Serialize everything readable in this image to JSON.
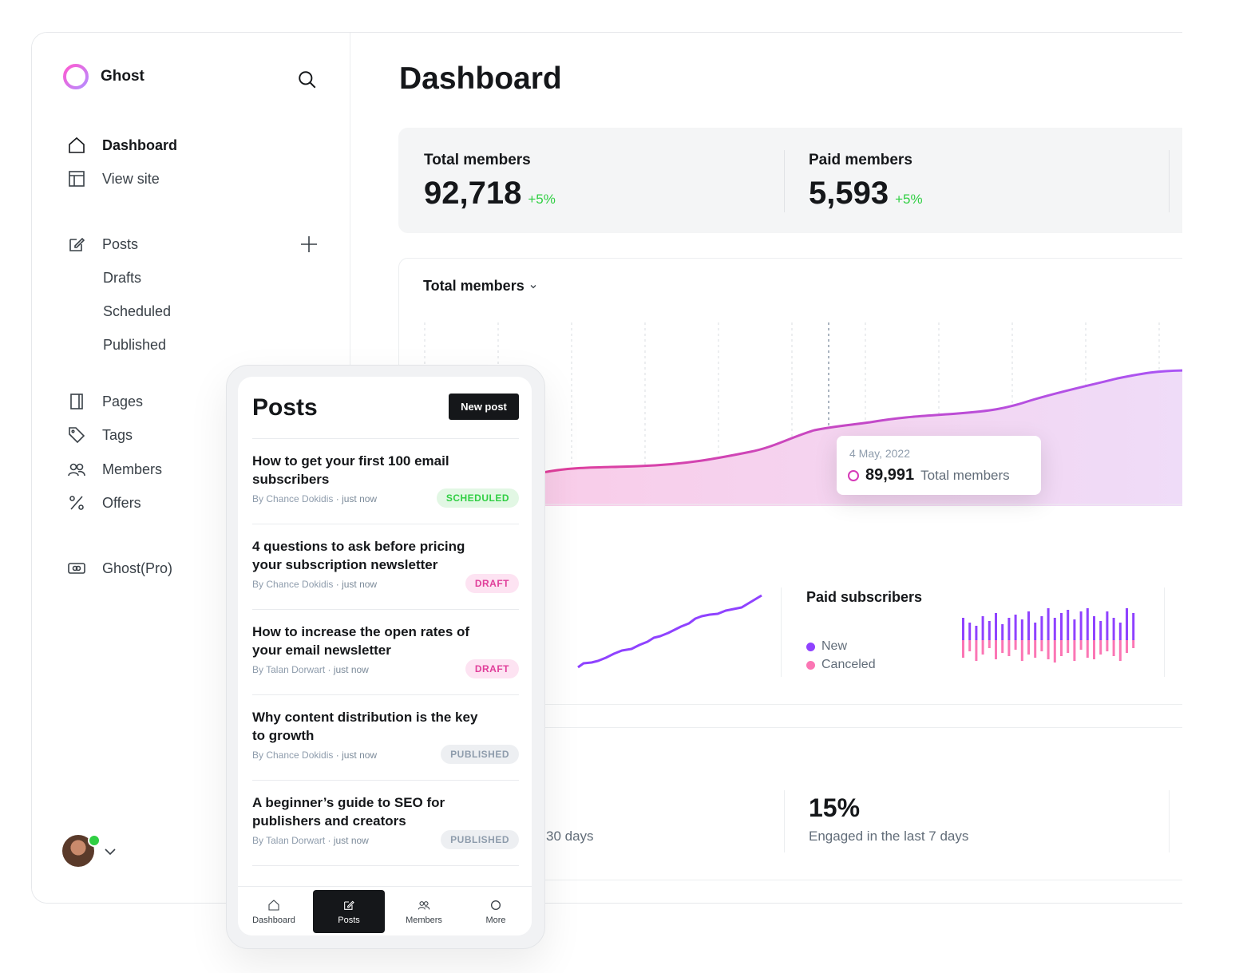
{
  "brand": {
    "name": "Ghost"
  },
  "sidebar": {
    "items": [
      {
        "label": "Dashboard"
      },
      {
        "label": "View site"
      },
      {
        "label": "Posts"
      },
      {
        "label": "Pages"
      },
      {
        "label": "Tags"
      },
      {
        "label": "Members"
      },
      {
        "label": "Offers"
      },
      {
        "label": "Ghost(Pro)"
      }
    ],
    "posts_sub": [
      {
        "label": "Drafts"
      },
      {
        "label": "Scheduled"
      },
      {
        "label": "Published"
      }
    ]
  },
  "main": {
    "title": "Dashboard",
    "stats": [
      {
        "label": "Total members",
        "value": "92,718",
        "delta": "+5%"
      },
      {
        "label": "Paid members",
        "value": "5,593",
        "delta": "+5%"
      }
    ],
    "chart": {
      "title": "Total members",
      "tooltip": {
        "date": "4 May, 2022",
        "value": "89,991",
        "label": "Total members"
      }
    },
    "paid_subscribers": {
      "title": "Paid subscribers",
      "legend": [
        {
          "label": "New",
          "color": "#8f42ff"
        },
        {
          "label": "Canceled",
          "color": "#fb76b4"
        }
      ]
    },
    "engagement": {
      "left_caption": "30 days",
      "value": "15%",
      "caption": "Engaged in the last 7 days"
    }
  },
  "phone": {
    "title": "Posts",
    "new_post_label": "New post",
    "posts": [
      {
        "title": "How to get your first 100 email subscribers",
        "author": "By Chance Dokidis",
        "time": "· just now",
        "status": "SCHEDULED",
        "status_class": "scheduled"
      },
      {
        "title": "4 questions to ask before pricing your subscription newsletter",
        "author": "By Chance Dokidis",
        "time": "· just now",
        "status": "DRAFT",
        "status_class": "draft"
      },
      {
        "title": "How to increase the open rates of your email newsletter",
        "author": "By Talan Dorwart",
        "time": "· just now",
        "status": "DRAFT",
        "status_class": "draft"
      },
      {
        "title": "Why content distribution is the key to growth",
        "author": "By Chance Dokidis",
        "time": "· just now",
        "status": "PUBLISHED",
        "status_class": "published"
      },
      {
        "title": "A beginner’s guide to SEO for publishers and creators",
        "author": "By Talan Dorwart",
        "time": "· just now",
        "status": "PUBLISHED",
        "status_class": "published"
      }
    ],
    "tabs": [
      {
        "label": "Dashboard"
      },
      {
        "label": "Posts"
      },
      {
        "label": "Members"
      },
      {
        "label": "More"
      }
    ]
  },
  "colors": {
    "accent_pink": "#d63ab8",
    "accent_purple": "#8f42ff",
    "positive": "#30cf43"
  }
}
